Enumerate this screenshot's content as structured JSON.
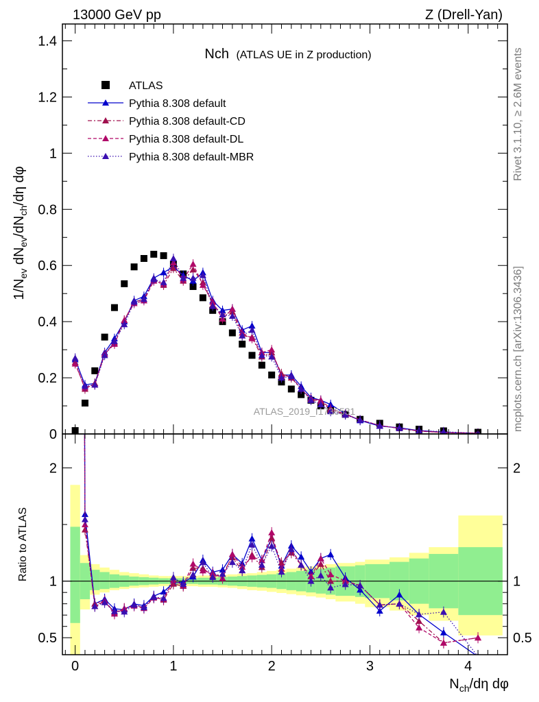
{
  "header": {
    "energy": "13000 GeV pp",
    "process": "Z (Drell-Yan)",
    "plot_title": "Nch",
    "plot_subtitle": "(ATLAS UE in Z production)",
    "watermark": "ATLAS_2019_I1736531",
    "rivet_label": "Rivet 3.1.10, ≥ 2.6M events",
    "mcplots_label": "mcplots.cern.ch [arXiv:1306.3436]"
  },
  "legend": {
    "items": [
      {
        "label": "ATLAS",
        "color": "#000000",
        "marker": "square"
      },
      {
        "label": "Pythia 8.308 default",
        "color": "#0000cc",
        "marker": "triangle",
        "dash": "solid"
      },
      {
        "label": "Pythia 8.308 default-CD",
        "color": "#a0104e",
        "marker": "triangle",
        "dash": "dashdot"
      },
      {
        "label": "Pythia 8.308 default-DL",
        "color": "#b00868",
        "marker": "triangle",
        "dash": "dashed"
      },
      {
        "label": "Pythia 8.308 default-MBR",
        "color": "#3a0fb0",
        "marker": "triangle",
        "dash": "dotted"
      }
    ]
  },
  "chart_data": [
    {
      "type": "scatter",
      "panel": "main",
      "xlabel": "N_ch/dη dφ",
      "ylabel": "1/N_ev dN_ev/dN_ch/dη dφ",
      "xlim": [
        -0.13,
        4.4
      ],
      "ylim": [
        0,
        1.46
      ],
      "xticks": [
        "0",
        "1",
        "2",
        "3",
        "4"
      ],
      "yticks": [
        "0",
        "0.2",
        "0.4",
        "0.6",
        "0.8",
        "1",
        "1.2",
        "1.4"
      ],
      "series": [
        {
          "name": "ATLAS",
          "color": "#000000",
          "x": [
            0,
            0.1,
            0.2,
            0.3,
            0.4,
            0.5,
            0.6,
            0.7,
            0.8,
            0.9,
            1.0,
            1.1,
            1.2,
            1.3,
            1.4,
            1.5,
            1.6,
            1.7,
            1.8,
            1.9,
            2.0,
            2.1,
            2.2,
            2.3,
            2.4,
            2.5,
            2.6,
            2.75,
            2.9,
            3.1,
            3.3,
            3.5,
            3.75,
            4.1
          ],
          "y": [
            0.012,
            0.11,
            0.225,
            0.345,
            0.45,
            0.535,
            0.595,
            0.625,
            0.64,
            0.635,
            0.605,
            0.57,
            0.525,
            0.485,
            0.44,
            0.4,
            0.36,
            0.32,
            0.28,
            0.245,
            0.21,
            0.185,
            0.16,
            0.14,
            0.12,
            0.1,
            0.085,
            0.07,
            0.052,
            0.038,
            0.025,
            0.017,
            0.011,
            0.006
          ]
        },
        {
          "name": "Pythia 8.308 default",
          "color": "#0000cc",
          "x": [
            0,
            0.1,
            0.2,
            0.3,
            0.4,
            0.5,
            0.6,
            0.7,
            0.8,
            0.9,
            1.0,
            1.1,
            1.2,
            1.3,
            1.4,
            1.5,
            1.6,
            1.7,
            1.8,
            1.9,
            2.0,
            2.1,
            2.2,
            2.3,
            2.4,
            2.5,
            2.6,
            2.75,
            2.9,
            3.1,
            3.3,
            3.5,
            3.75,
            4.1
          ],
          "y": [
            0.265,
            0.175,
            0.18,
            0.29,
            0.34,
            0.4,
            0.475,
            0.49,
            0.555,
            0.575,
            0.595,
            0.565,
            0.545,
            0.575,
            0.475,
            0.44,
            0.445,
            0.37,
            0.385,
            0.29,
            0.29,
            0.21,
            0.21,
            0.17,
            0.13,
            0.12,
            0.105,
            0.072,
            0.048,
            0.028,
            0.022,
            0.012,
            0.006,
            0.002
          ]
        },
        {
          "name": "Pythia 8.308 default-CD",
          "color": "#a0104e",
          "x": [
            0,
            0.1,
            0.2,
            0.3,
            0.4,
            0.5,
            0.6,
            0.7,
            0.8,
            0.9,
            1.0,
            1.1,
            1.2,
            1.3,
            1.4,
            1.5,
            1.6,
            1.7,
            1.8,
            1.9,
            2.0,
            2.1,
            2.2,
            2.3,
            2.4,
            2.5,
            2.6,
            2.75,
            2.9,
            3.1,
            3.3,
            3.5,
            3.75,
            4.1
          ],
          "y": [
            0.255,
            0.16,
            0.18,
            0.285,
            0.325,
            0.405,
            0.47,
            0.48,
            0.55,
            0.53,
            0.59,
            0.545,
            0.585,
            0.54,
            0.46,
            0.425,
            0.435,
            0.35,
            0.345,
            0.275,
            0.29,
            0.215,
            0.2,
            0.16,
            0.125,
            0.115,
            0.085,
            0.07,
            0.05,
            0.03,
            0.02,
            0.011,
            0.005,
            0.003
          ]
        },
        {
          "name": "Pythia 8.308 default-DL",
          "color": "#b00868",
          "x": [
            0,
            0.1,
            0.2,
            0.3,
            0.4,
            0.5,
            0.6,
            0.7,
            0.8,
            0.9,
            1.0,
            1.1,
            1.2,
            1.3,
            1.4,
            1.5,
            1.6,
            1.7,
            1.8,
            1.9,
            2.0,
            2.1,
            2.2,
            2.3,
            2.4,
            2.5,
            2.6,
            2.75,
            2.9,
            3.1,
            3.3,
            3.5,
            3.75,
            4.1
          ],
          "y": [
            0.25,
            0.165,
            0.175,
            0.285,
            0.32,
            0.405,
            0.465,
            0.475,
            0.545,
            0.535,
            0.61,
            0.55,
            0.605,
            0.53,
            0.47,
            0.41,
            0.445,
            0.36,
            0.34,
            0.29,
            0.3,
            0.205,
            0.205,
            0.16,
            0.125,
            0.12,
            0.09,
            0.07,
            0.05,
            0.03,
            0.02,
            0.01,
            0.005,
            0.003
          ]
        },
        {
          "name": "Pythia 8.308 default-MBR",
          "color": "#3a0fb0",
          "x": [
            0,
            0.1,
            0.2,
            0.3,
            0.4,
            0.5,
            0.6,
            0.7,
            0.8,
            0.9,
            1.0,
            1.1,
            1.2,
            1.3,
            1.4,
            1.5,
            1.6,
            1.7,
            1.8,
            1.9,
            2.0,
            2.1,
            2.2,
            2.3,
            2.4,
            2.5,
            2.6,
            2.75,
            2.9,
            3.1,
            3.3,
            3.5,
            3.75,
            4.1
          ],
          "y": [
            0.27,
            0.17,
            0.175,
            0.28,
            0.33,
            0.39,
            0.47,
            0.48,
            0.55,
            0.54,
            0.625,
            0.555,
            0.555,
            0.565,
            0.455,
            0.425,
            0.42,
            0.35,
            0.37,
            0.28,
            0.275,
            0.2,
            0.205,
            0.16,
            0.12,
            0.105,
            0.08,
            0.068,
            0.05,
            0.03,
            0.02,
            0.012,
            0.008,
            0.002
          ]
        }
      ]
    },
    {
      "type": "line",
      "panel": "ratio",
      "ylabel": "Ratio to ATLAS",
      "xlim": [
        -0.13,
        4.4
      ],
      "ylim": [
        0.35,
        2.3
      ],
      "yticks": [
        "0.5",
        "1",
        "2"
      ],
      "bands": {
        "edges": [
          -0.05,
          0.05,
          0.15,
          0.25,
          0.35,
          0.45,
          0.55,
          0.65,
          0.75,
          0.85,
          0.95,
          1.05,
          1.15,
          1.25,
          1.35,
          1.45,
          1.55,
          1.65,
          1.75,
          1.85,
          1.95,
          2.05,
          2.15,
          2.25,
          2.35,
          2.45,
          2.55,
          2.65,
          2.85,
          2.95,
          3.2,
          3.4,
          3.6,
          3.9,
          4.35
        ],
        "green_lo": [
          0.63,
          0.84,
          0.92,
          0.93,
          0.94,
          0.95,
          0.96,
          0.965,
          0.97,
          0.975,
          0.975,
          0.975,
          0.975,
          0.97,
          0.97,
          0.965,
          0.96,
          0.955,
          0.95,
          0.945,
          0.94,
          0.93,
          0.92,
          0.91,
          0.9,
          0.89,
          0.88,
          0.87,
          0.86,
          0.85,
          0.83,
          0.8,
          0.76,
          0.7
        ],
        "green_hi": [
          1.48,
          1.16,
          1.1,
          1.08,
          1.06,
          1.05,
          1.04,
          1.035,
          1.03,
          1.025,
          1.025,
          1.025,
          1.025,
          1.03,
          1.03,
          1.035,
          1.04,
          1.045,
          1.05,
          1.055,
          1.06,
          1.07,
          1.08,
          1.09,
          1.1,
          1.11,
          1.12,
          1.13,
          1.14,
          1.15,
          1.17,
          1.2,
          1.24,
          1.3
        ],
        "yellow_lo": [
          0.28,
          0.75,
          0.88,
          0.9,
          0.92,
          0.93,
          0.94,
          0.945,
          0.95,
          0.955,
          0.955,
          0.955,
          0.955,
          0.95,
          0.95,
          0.945,
          0.94,
          0.93,
          0.92,
          0.915,
          0.905,
          0.895,
          0.885,
          0.875,
          0.865,
          0.855,
          0.84,
          0.82,
          0.8,
          0.77,
          0.74,
          0.7,
          0.65,
          0.52
        ],
        "yellow_hi": [
          1.85,
          1.23,
          1.15,
          1.12,
          1.1,
          1.08,
          1.07,
          1.06,
          1.05,
          1.045,
          1.045,
          1.045,
          1.045,
          1.05,
          1.05,
          1.055,
          1.06,
          1.065,
          1.07,
          1.08,
          1.09,
          1.1,
          1.11,
          1.12,
          1.13,
          1.14,
          1.15,
          1.16,
          1.17,
          1.19,
          1.21,
          1.25,
          1.3,
          1.58
        ],
        "green_color": "#90ee90",
        "yellow_color": "#ffff99"
      }
    }
  ]
}
